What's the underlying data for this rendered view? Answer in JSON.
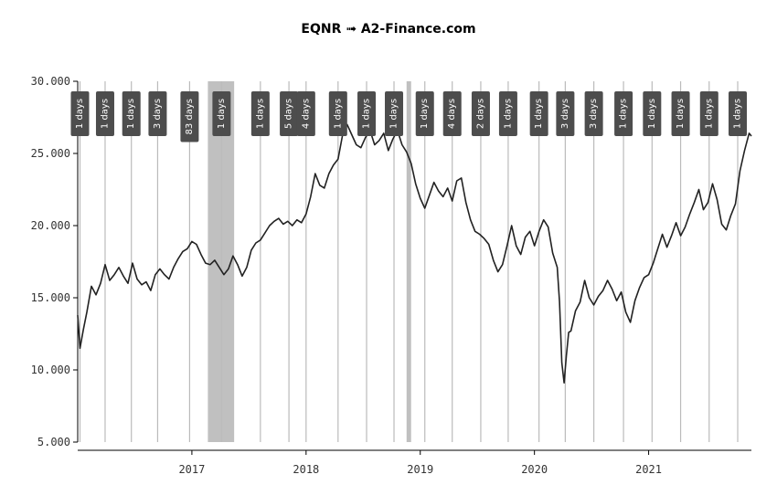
{
  "chart_data": {
    "type": "line",
    "title": "EQNR ➟ A2-Finance.com",
    "xlabel": "",
    "ylabel": "",
    "ylim": [
      5,
      30
    ],
    "y_ticks": [
      "5.000",
      "10.000",
      "15.000",
      "20.000",
      "25.000",
      "30.000"
    ],
    "y_tick_values": [
      5,
      10,
      15,
      20,
      25,
      30
    ],
    "xlim": [
      2016.0,
      2021.9
    ],
    "x_ticks": [
      "2017",
      "2018",
      "2019",
      "2020",
      "2021"
    ],
    "x_tick_values": [
      2017.0,
      2018.0,
      2019.0,
      2020.0,
      2021.0
    ],
    "grid": false,
    "line_color": "#222222",
    "event_line_color": "#bbbbbb",
    "shade_color": "#c0c0c0",
    "label_box_color": "#4d4d4d",
    "label_text_color": "#ffffff",
    "shaded_periods": [
      {
        "start": 2017.14,
        "end": 2017.37
      },
      {
        "start": 2018.88,
        "end": 2018.92
      }
    ],
    "events": [
      {
        "x": 2016.02,
        "label": "1 days"
      },
      {
        "x": 2016.24,
        "label": "1 days"
      },
      {
        "x": 2016.47,
        "label": "1 days"
      },
      {
        "x": 2016.7,
        "label": "3 days"
      },
      {
        "x": 2016.98,
        "label": "83 days"
      },
      {
        "x": 2017.26,
        "label": "1 days"
      },
      {
        "x": 2017.6,
        "label": "1 days"
      },
      {
        "x": 2017.85,
        "label": "5 days"
      },
      {
        "x": 2018.0,
        "label": "4 days"
      },
      {
        "x": 2018.28,
        "label": "1 days"
      },
      {
        "x": 2018.53,
        "label": "1 days"
      },
      {
        "x": 2018.77,
        "label": "1 days"
      },
      {
        "x": 2019.04,
        "label": "1 days"
      },
      {
        "x": 2019.28,
        "label": "4 days"
      },
      {
        "x": 2019.53,
        "label": "2 days"
      },
      {
        "x": 2019.77,
        "label": "1 days"
      },
      {
        "x": 2020.04,
        "label": "1 days"
      },
      {
        "x": 2020.27,
        "label": "3 days"
      },
      {
        "x": 2020.52,
        "label": "3 days"
      },
      {
        "x": 2020.78,
        "label": "1 days"
      },
      {
        "x": 2021.03,
        "label": "1 days"
      },
      {
        "x": 2021.28,
        "label": "1 days"
      },
      {
        "x": 2021.53,
        "label": "1 days"
      },
      {
        "x": 2021.78,
        "label": "1 days"
      }
    ],
    "series": [
      {
        "x": [
          2016.0,
          2016.02,
          2016.05,
          2016.08,
          2016.12,
          2016.16,
          2016.2,
          2016.24,
          2016.28,
          2016.32,
          2016.36,
          2016.4,
          2016.44,
          2016.48,
          2016.52,
          2016.56,
          2016.6,
          2016.64,
          2016.68,
          2016.72,
          2016.76,
          2016.8,
          2016.84,
          2016.88,
          2016.92,
          2016.96,
          2017.0,
          2017.04,
          2017.08,
          2017.12,
          2017.16,
          2017.2,
          2017.24,
          2017.28,
          2017.32,
          2017.36,
          2017.4,
          2017.44,
          2017.48,
          2017.52,
          2017.56,
          2017.6,
          2017.64,
          2017.68,
          2017.72,
          2017.76,
          2017.8,
          2017.84,
          2017.88,
          2017.92,
          2017.96,
          2018.0,
          2018.04,
          2018.08,
          2018.12,
          2018.16,
          2018.2,
          2018.24,
          2018.28,
          2018.32,
          2018.36,
          2018.4,
          2018.44,
          2018.48,
          2018.52,
          2018.56,
          2018.6,
          2018.64,
          2018.68,
          2018.72,
          2018.76,
          2018.8,
          2018.84,
          2018.88,
          2018.92,
          2018.96,
          2019.0,
          2019.04,
          2019.08,
          2019.12,
          2019.16,
          2019.2,
          2019.24,
          2019.28,
          2019.32,
          2019.36,
          2019.4,
          2019.44,
          2019.48,
          2019.52,
          2019.56,
          2019.6,
          2019.64,
          2019.68,
          2019.72,
          2019.76,
          2019.8,
          2019.84,
          2019.88,
          2019.92,
          2019.96,
          2020.0,
          2020.04,
          2020.08,
          2020.12,
          2020.16,
          2020.2,
          2020.22,
          2020.24,
          2020.26,
          2020.28,
          2020.3,
          2020.32,
          2020.36,
          2020.4,
          2020.44,
          2020.48,
          2020.52,
          2020.56,
          2020.6,
          2020.64,
          2020.68,
          2020.72,
          2020.76,
          2020.8,
          2020.84,
          2020.88,
          2020.92,
          2020.96,
          2021.0,
          2021.04,
          2021.08,
          2021.12,
          2021.16,
          2021.2,
          2021.24,
          2021.28,
          2021.32,
          2021.36,
          2021.4,
          2021.44,
          2021.48,
          2021.52,
          2021.56,
          2021.6,
          2021.64,
          2021.68,
          2021.72,
          2021.76,
          2021.8,
          2021.84,
          2021.88,
          2021.9
        ],
        "values": [
          13.8,
          11.5,
          12.8,
          14.0,
          15.8,
          15.2,
          16.0,
          17.3,
          16.2,
          16.6,
          17.1,
          16.5,
          16.0,
          17.4,
          16.3,
          15.9,
          16.1,
          15.5,
          16.6,
          17.0,
          16.6,
          16.3,
          17.1,
          17.7,
          18.2,
          18.4,
          18.9,
          18.7,
          18.0,
          17.4,
          17.3,
          17.6,
          17.1,
          16.6,
          17.0,
          17.9,
          17.3,
          16.5,
          17.1,
          18.3,
          18.8,
          19.0,
          19.5,
          20.0,
          20.3,
          20.5,
          20.1,
          20.3,
          20.0,
          20.4,
          20.2,
          20.8,
          22.0,
          23.6,
          22.8,
          22.6,
          23.6,
          24.2,
          24.6,
          26.3,
          27.0,
          26.3,
          25.6,
          25.4,
          26.1,
          26.6,
          25.6,
          25.9,
          26.4,
          25.2,
          26.0,
          26.6,
          25.6,
          25.1,
          24.3,
          22.9,
          21.9,
          21.2,
          22.1,
          23.0,
          22.4,
          22.0,
          22.6,
          21.7,
          23.1,
          23.3,
          21.6,
          20.4,
          19.6,
          19.4,
          19.1,
          18.7,
          17.6,
          16.8,
          17.3,
          18.6,
          20.0,
          18.6,
          18.0,
          19.2,
          19.6,
          18.6,
          19.6,
          20.4,
          19.9,
          18.1,
          17.1,
          14.7,
          10.5,
          9.1,
          11.0,
          12.6,
          12.7,
          14.1,
          14.7,
          16.2,
          15.0,
          14.5,
          15.1,
          15.5,
          16.2,
          15.6,
          14.8,
          15.4,
          14.0,
          13.3,
          14.8,
          15.7,
          16.4,
          16.6,
          17.4,
          18.4,
          19.4,
          18.5,
          19.3,
          20.2,
          19.3,
          19.9,
          20.8,
          21.6,
          22.5,
          21.1,
          21.6,
          22.9,
          21.8,
          20.1,
          19.7,
          20.7,
          21.5,
          23.8,
          25.2,
          26.4,
          26.2
        ]
      }
    ]
  }
}
